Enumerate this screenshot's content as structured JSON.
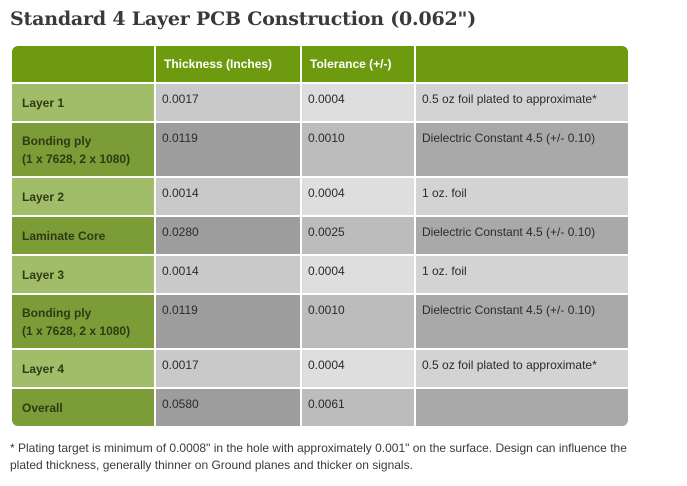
{
  "title": "Standard 4 Layer PCB Construction (0.062\")",
  "table": {
    "headers": [
      "",
      "Thickness (Inches)",
      "Tolerance (+/-)",
      ""
    ],
    "rows": [
      {
        "label": "Layer 1",
        "sublabel": "",
        "thickness": "0.0017",
        "tolerance": "0.0004",
        "note": "0.5 oz foil plated to approximate*"
      },
      {
        "label": "Bonding ply",
        "sublabel": "(1 x 7628, 2 x 1080)",
        "thickness": "0.0119",
        "tolerance": "0.0010",
        "note": "Dielectric Constant 4.5 (+/- 0.10)"
      },
      {
        "label": "Layer 2",
        "sublabel": "",
        "thickness": "0.0014",
        "tolerance": "0.0004",
        "note": "1 oz. foil"
      },
      {
        "label": "Laminate Core",
        "sublabel": "",
        "thickness": "0.0280",
        "tolerance": "0.0025",
        "note": "Dielectric Constant 4.5 (+/- 0.10)"
      },
      {
        "label": "Layer 3",
        "sublabel": "",
        "thickness": "0.0014",
        "tolerance": "0.0004",
        "note": "1 oz. foil"
      },
      {
        "label": "Bonding ply",
        "sublabel": "(1 x 7628, 2 x 1080)",
        "thickness": "0.0119",
        "tolerance": "0.0010",
        "note": "Dielectric Constant 4.5 (+/- 0.10)"
      },
      {
        "label": "Layer 4",
        "sublabel": "",
        "thickness": "0.0017",
        "tolerance": "0.0004",
        "note": "0.5 oz foil plated to approximate*"
      },
      {
        "label": "Overall",
        "sublabel": "",
        "thickness": "0.0580",
        "tolerance": "0.0061",
        "note": ""
      }
    ]
  },
  "footnote": "* Plating target is minimum of 0.0008\" in the hole with approximately 0.001\" on the surface. Design can influence the plated thickness, generally thinner on Ground planes and thicker on signals."
}
